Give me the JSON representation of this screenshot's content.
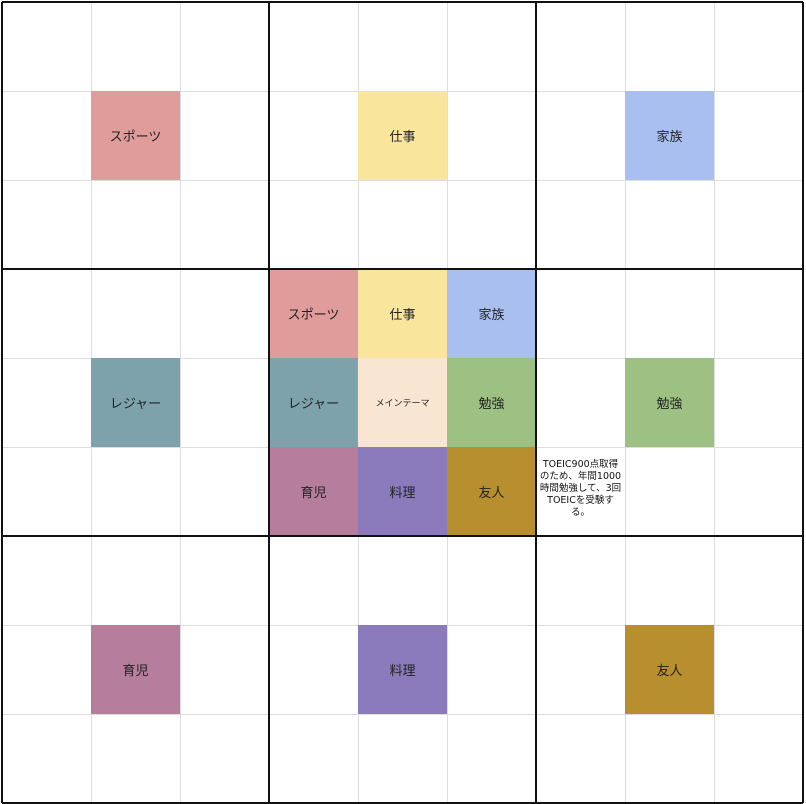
{
  "center": {
    "label": "メインテーマ"
  },
  "themes": [
    {
      "label": "スポーツ"
    },
    {
      "label": "仕事"
    },
    {
      "label": "家族"
    },
    {
      "label": "レジャー"
    },
    {
      "label": "勉強",
      "goal": "TOEIC900点取得のため、年間1000時間勉強して、3回TOEICを受験する。"
    },
    {
      "label": "育児"
    },
    {
      "label": "料理"
    },
    {
      "label": "友人"
    }
  ]
}
